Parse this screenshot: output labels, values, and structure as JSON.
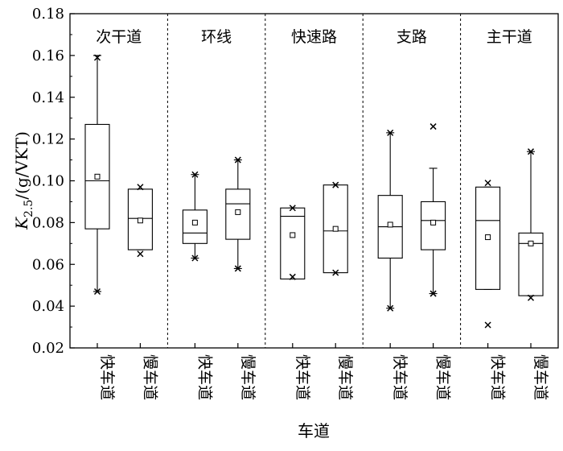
{
  "chart_data": {
    "type": "box",
    "ylabel": "K2.5/(g/VKT)",
    "ylabel_parts": {
      "main": "K",
      "sub": "2.5",
      "unit": "/(g/VKT)"
    },
    "xlabel": "车道",
    "ylim": [
      0.02,
      0.18
    ],
    "yticks": [
      "0.02",
      "0.04",
      "0.06",
      "0.08",
      "0.10",
      "0.12",
      "0.14",
      "0.16",
      "0.18"
    ],
    "groups": [
      {
        "name": "次干道",
        "boxes": [
          {
            "category": "快车道",
            "q1": 0.077,
            "median": 0.1,
            "q3": 0.127,
            "whisker_low": 0.047,
            "whisker_high": 0.16,
            "mean": 0.102,
            "min": 0.047,
            "max": 0.159
          },
          {
            "category": "慢车道",
            "q1": 0.067,
            "median": 0.082,
            "q3": 0.096,
            "whisker_low": 0.067,
            "whisker_high": 0.096,
            "mean": 0.081,
            "min": 0.065,
            "max": 0.097
          }
        ]
      },
      {
        "name": "环线",
        "boxes": [
          {
            "category": "快车道",
            "q1": 0.07,
            "median": 0.075,
            "q3": 0.086,
            "whisker_low": 0.063,
            "whisker_high": 0.103,
            "mean": 0.08,
            "min": 0.063,
            "max": 0.103
          },
          {
            "category": "慢车道",
            "q1": 0.072,
            "median": 0.089,
            "q3": 0.096,
            "whisker_low": 0.058,
            "whisker_high": 0.11,
            "mean": 0.085,
            "min": 0.058,
            "max": 0.11
          }
        ]
      },
      {
        "name": "快速路",
        "boxes": [
          {
            "category": "快车道",
            "q1": 0.053,
            "median": 0.083,
            "q3": 0.087,
            "whisker_low": 0.053,
            "whisker_high": 0.087,
            "mean": 0.074,
            "min": 0.054,
            "max": 0.087
          },
          {
            "category": "慢车道",
            "q1": 0.056,
            "median": 0.076,
            "q3": 0.098,
            "whisker_low": 0.056,
            "whisker_high": 0.098,
            "mean": 0.077,
            "min": 0.056,
            "max": 0.098
          }
        ]
      },
      {
        "name": "支路",
        "boxes": [
          {
            "category": "快车道",
            "q1": 0.063,
            "median": 0.078,
            "q3": 0.093,
            "whisker_low": 0.039,
            "whisker_high": 0.123,
            "mean": 0.079,
            "min": 0.039,
            "max": 0.123
          },
          {
            "category": "慢车道",
            "q1": 0.067,
            "median": 0.081,
            "q3": 0.09,
            "whisker_low": 0.046,
            "whisker_high": 0.106,
            "mean": 0.08,
            "min": 0.046,
            "max": 0.126
          }
        ]
      },
      {
        "name": "主干道",
        "boxes": [
          {
            "category": "快车道",
            "q1": 0.048,
            "median": 0.081,
            "q3": 0.097,
            "whisker_low": 0.048,
            "whisker_high": 0.097,
            "mean": 0.073,
            "min": 0.031,
            "max": 0.099
          },
          {
            "category": "慢车道",
            "q1": 0.045,
            "median": 0.07,
            "q3": 0.075,
            "whisker_low": 0.045,
            "whisker_high": 0.114,
            "mean": 0.07,
            "min": 0.044,
            "max": 0.114
          }
        ]
      }
    ],
    "grid": false,
    "legend": "none"
  }
}
